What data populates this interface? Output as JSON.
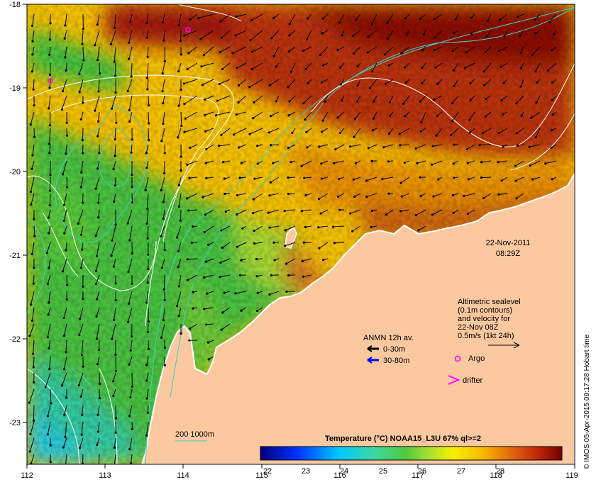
{
  "map": {
    "lon_range": [
      112,
      119
    ],
    "lat_range": [
      -23.5,
      -18
    ],
    "lon_ticks": [
      "112",
      "113",
      "114",
      "115",
      "116",
      "117",
      "118",
      "119"
    ],
    "lat_ticks": [
      "-18",
      "-19",
      "-20",
      "-21",
      "-22",
      "-23"
    ],
    "colors": {
      "land": "#fcc8a0",
      "arrow": "#000000",
      "isobath": "#3fd0c8",
      "contour": "#ffffff",
      "argo": "#ff00ff"
    }
  },
  "date_label": {
    "date": "22-Nov-2011",
    "time": "08:29Z"
  },
  "legend_altimetry": {
    "line1": "Altimetric sealevel",
    "line2": "(0.1m contours)",
    "line3": "and velocity for",
    "line4": "22-Nov 08Z",
    "line5": "0.5m/s (1kt 24h)"
  },
  "legend_anmn": {
    "title": "ANMN 12h av.",
    "depth1": "0-30m",
    "depth2": "30-80m",
    "depth1_color": "#000000",
    "depth2_color": "#0000ff"
  },
  "legend_markers": {
    "argo": "Argo",
    "drifter": "drifter"
  },
  "isobath_label": "200  1000m",
  "colorbar": {
    "title": "Temperature (°C) NOAA15_L3U 67% ql>=2",
    "ticks": [
      "22",
      "23",
      "24",
      "25",
      "26",
      "27",
      "28"
    ],
    "range": [
      22,
      29
    ]
  },
  "credit": "© IMOS 05-Apr-2015 09:17:28 Hobart time"
}
